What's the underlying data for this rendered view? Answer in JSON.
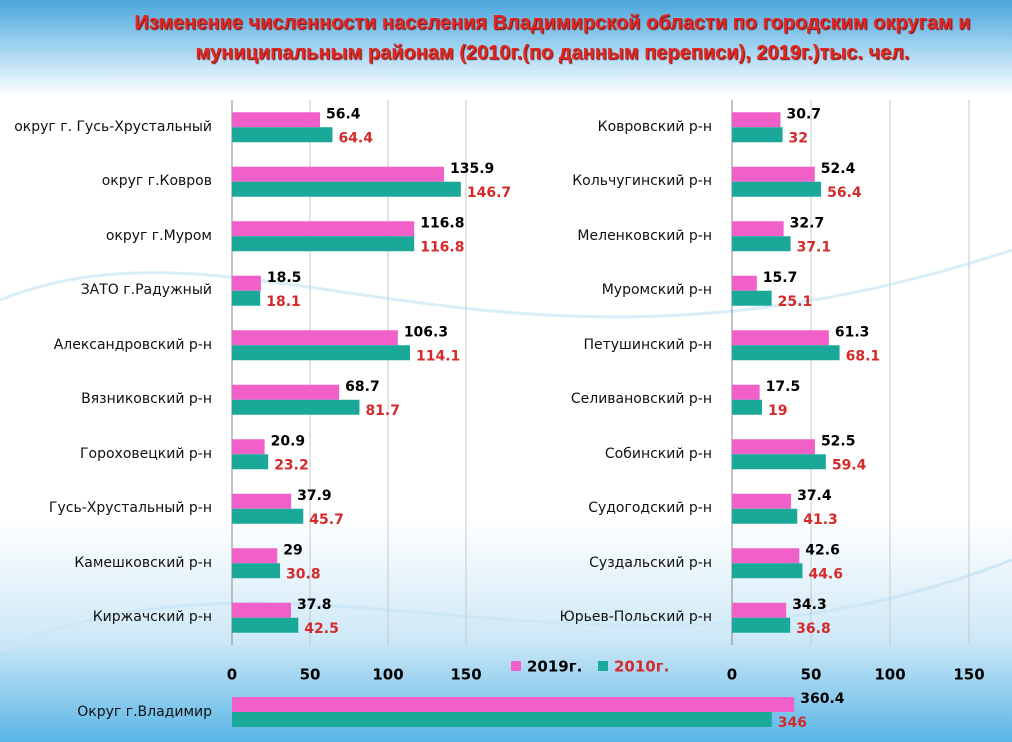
{
  "chart_data": [
    {
      "type": "hbar",
      "title": "Изменение численности населения Владимирской области по городским округам и муниципальным районам (2010г.(по данным переписи), 2019г.)тыс. чел.",
      "categories": [
        "округ г. Гусь-Хрустальный",
        "округ г.Ковров",
        "округ г.Муром",
        "ЗАТО г.Радужный",
        "Александровский р-н",
        "Вязниковский р-н",
        "Гороховецкий р-н",
        "Гусь-Хрустальный р-н",
        "Камешковский р-н",
        "Киржачский р-н"
      ],
      "series": [
        {
          "name": "2019г.",
          "color": "#f060c8",
          "label_color": "#000000",
          "values": [
            56.4,
            135.9,
            116.8,
            18.5,
            106.3,
            68.7,
            20.9,
            37.9,
            29,
            37.8
          ]
        },
        {
          "name": "2010г.",
          "color": "#1aa899",
          "label_color": "#d42a2a",
          "values": [
            64.4,
            146.7,
            116.8,
            18.1,
            114.1,
            81.7,
            23.2,
            45.7,
            30.8,
            42.5
          ]
        }
      ],
      "xlim": [
        0,
        150
      ],
      "xticks": [
        0,
        50,
        100,
        150
      ],
      "grid": true
    },
    {
      "type": "hbar",
      "categories": [
        "Ковровский р-н",
        "Кольчугинский р-н",
        "Меленковский р-н",
        "Муромский р-н",
        "Петушинский р-н",
        "Селивановский р-н",
        "Собинский р-н",
        "Судогодский р-н",
        "Суздальский р-н",
        "Юрьев-Польский р-н"
      ],
      "series": [
        {
          "color": "#f060c8",
          "label_color": "#000000",
          "values": [
            30.7,
            52.4,
            32.7,
            15.7,
            61.3,
            17.5,
            52.5,
            37.4,
            42.6,
            34.3
          ]
        },
        {
          "color": "#1aa899",
          "label_color": "#d42a2a",
          "values": [
            32,
            56.4,
            37.1,
            25.1,
            68.1,
            19,
            59.4,
            41.3,
            44.6,
            36.8
          ]
        }
      ],
      "xlim": [
        0,
        150
      ],
      "xticks": [
        0,
        50,
        100,
        150
      ],
      "grid": true
    },
    {
      "type": "hbar",
      "categories": [
        "Округ г.Владимир"
      ],
      "series": [
        {
          "color": "#f060c8",
          "label_color": "#000000",
          "values": [
            360.4
          ]
        },
        {
          "color": "#1aa899",
          "label_color": "#d42a2a",
          "values": [
            346
          ]
        }
      ],
      "xlim": [
        0,
        500
      ],
      "grid": false
    }
  ]
}
